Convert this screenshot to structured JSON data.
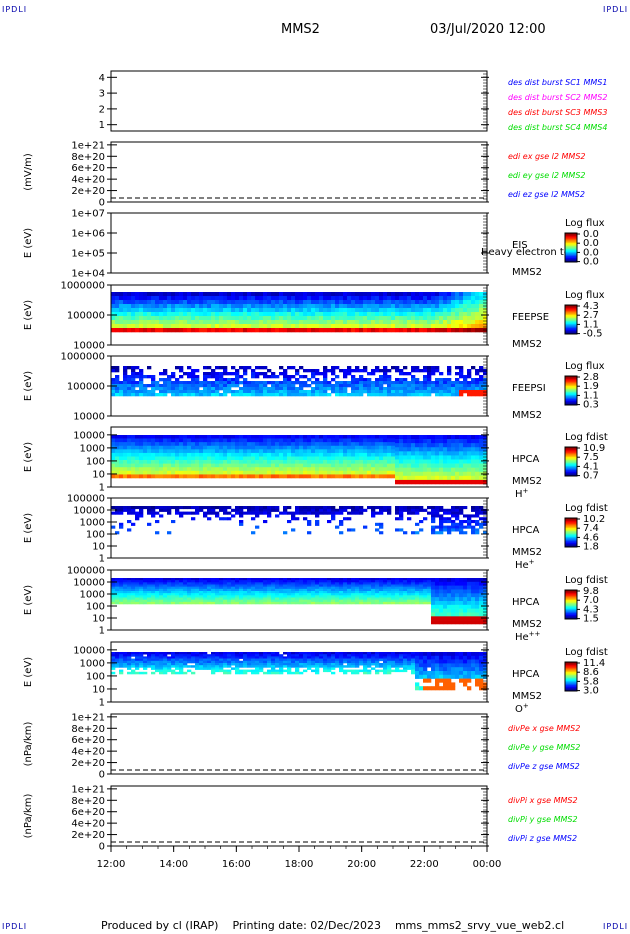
{
  "header": {
    "corner_left": "IPDLI",
    "corner_right": "IPDLI",
    "title": "MMS2",
    "datetime": "03/Jul/2020 12:00"
  },
  "footer": {
    "corner_left": "IPDLI",
    "corner_right": "IPDLI",
    "text": "Produced by cl (IRAP)    Printing date: 02/Dec/2023    mms_mms2_srvy_vue_web2.cl"
  },
  "colors": {
    "blue": "#0000ff",
    "magenta": "#ff00ff",
    "red": "#ff0000",
    "green": "#00dd00",
    "darkblue": "#0000aa"
  },
  "chart_data": [
    {
      "type": "line",
      "panel": "des-dist-burst",
      "yticks": [
        "1",
        "2",
        "3",
        "4"
      ],
      "ylim": [
        0.6,
        4.4
      ],
      "series": [
        {
          "name": "des dist burst SC1 MMS1",
          "color": "#0000ff"
        },
        {
          "name": "des dist burst SC2 MMS2",
          "color": "#ff00ff"
        },
        {
          "name": "des dist burst SC3 MMS3",
          "color": "#ff0000"
        },
        {
          "name": "des dist burst SC4 MMS4",
          "color": "#00dd00"
        }
      ]
    },
    {
      "type": "line",
      "panel": "edi-e",
      "ylabel": "(mV/m)",
      "yticks": [
        "0",
        "2e+20",
        "4e+20",
        "6e+20",
        "8e+20",
        "1e+21"
      ],
      "ylim": [
        0,
        1.05e+21
      ],
      "series": [
        {
          "name": "edi ex gse l2 MMS2",
          "color": "#ff0000"
        },
        {
          "name": "edi ey gse l2 MMS2",
          "color": "#00dd00"
        },
        {
          "name": "edi ez gse l2 MMS2",
          "color": "#0000ff"
        }
      ]
    },
    {
      "type": "heatmap",
      "panel": "eis",
      "ylabel": "E (eV)",
      "yticks": [
        "1e+04",
        "1e+05",
        "1e+06",
        "1e+07"
      ],
      "scale": "log",
      "ylim": [
        10000,
        10000000
      ],
      "instrument": [
        "EIS",
        "MMS2"
      ],
      "overlay_text": "Heavy electron tof",
      "colorbar": {
        "title": "Log flux",
        "ticks": [
          "0.0",
          "0.0",
          "0.0",
          "0.0"
        ]
      }
    },
    {
      "type": "heatmap",
      "panel": "feepse",
      "ylabel": "E (eV)",
      "yticks": [
        "10000",
        "100000",
        "1000000"
      ],
      "scale": "log",
      "ylim": [
        10000,
        1000000
      ],
      "instrument": [
        "FEEPSE",
        "MMS2"
      ],
      "colorbar": {
        "title": "Log flux",
        "ticks": [
          "4.3",
          "2.7",
          "1.1",
          "-0.5"
        ]
      }
    },
    {
      "type": "heatmap",
      "panel": "feepsi",
      "ylabel": "E (eV)",
      "yticks": [
        "10000",
        "100000",
        "1000000"
      ],
      "scale": "log",
      "ylim": [
        10000,
        1000000
      ],
      "instrument": [
        "FEEPSI",
        "MMS2"
      ],
      "colorbar": {
        "title": "Log flux",
        "ticks": [
          "2.8",
          "1.9",
          "1.1",
          "0.3"
        ]
      }
    },
    {
      "type": "heatmap",
      "panel": "hpca-h",
      "ylabel": "E (eV)",
      "yticks": [
        "1",
        "10",
        "100",
        "1000",
        "10000"
      ],
      "scale": "log",
      "ylim": [
        1,
        40000
      ],
      "instrument": [
        "HPCA",
        "MMS2",
        "H+"
      ],
      "colorbar": {
        "title": "Log fdist",
        "ticks": [
          "10.9",
          "7.5",
          "4.1",
          "0.7"
        ]
      }
    },
    {
      "type": "heatmap",
      "panel": "hpca-he",
      "ylabel": "E (eV)",
      "yticks": [
        "1",
        "10",
        "100",
        "1000",
        "10000",
        "100000"
      ],
      "scale": "log",
      "ylim": [
        1,
        100000
      ],
      "instrument": [
        "HPCA",
        "MMS2",
        "He+"
      ],
      "colorbar": {
        "title": "Log fdist",
        "ticks": [
          "10.2",
          "7.4",
          "4.6",
          "1.8"
        ]
      }
    },
    {
      "type": "heatmap",
      "panel": "hpca-hepp",
      "ylabel": "E (eV)",
      "yticks": [
        "1",
        "10",
        "100",
        "1000",
        "10000",
        "100000"
      ],
      "scale": "log",
      "ylim": [
        1,
        100000
      ],
      "instrument": [
        "HPCA",
        "MMS2",
        "He++"
      ],
      "colorbar": {
        "title": "Log fdist",
        "ticks": [
          "9.8",
          "7.0",
          "4.3",
          "1.5"
        ]
      }
    },
    {
      "type": "heatmap",
      "panel": "hpca-o",
      "ylabel": "E (eV)",
      "yticks": [
        "1",
        "10",
        "100",
        "1000",
        "10000"
      ],
      "scale": "log",
      "ylim": [
        1,
        40000
      ],
      "instrument": [
        "HPCA",
        "MMS2",
        "O+"
      ],
      "colorbar": {
        "title": "Log fdist",
        "ticks": [
          "11.4",
          "8.6",
          "5.8",
          "3.0"
        ]
      }
    },
    {
      "type": "line",
      "panel": "divpe",
      "ylabel": "(nPa/km)",
      "yticks": [
        "0",
        "2e+20",
        "4e+20",
        "6e+20",
        "8e+20",
        "1e+21"
      ],
      "ylim": [
        0,
        1.05e+21
      ],
      "series": [
        {
          "name": "divPe x gse MMS2",
          "color": "#ff0000"
        },
        {
          "name": "divPe y gse MMS2",
          "color": "#00dd00"
        },
        {
          "name": "divPe z gse MMS2",
          "color": "#0000ff"
        }
      ]
    },
    {
      "type": "line",
      "panel": "divpi",
      "ylabel": "(nPa/km)",
      "yticks": [
        "0",
        "2e+20",
        "4e+20",
        "6e+20",
        "8e+20",
        "1e+21"
      ],
      "ylim": [
        0,
        1.05e+21
      ],
      "series": [
        {
          "name": "divPi x gse MMS2",
          "color": "#ff0000"
        },
        {
          "name": "divPi y gse MMS2",
          "color": "#00dd00"
        },
        {
          "name": "divPi z gse MMS2",
          "color": "#0000ff"
        }
      ]
    }
  ],
  "xaxis": {
    "ticks": [
      "12:00",
      "14:00",
      "16:00",
      "18:00",
      "20:00",
      "22:00",
      "00:00"
    ]
  }
}
